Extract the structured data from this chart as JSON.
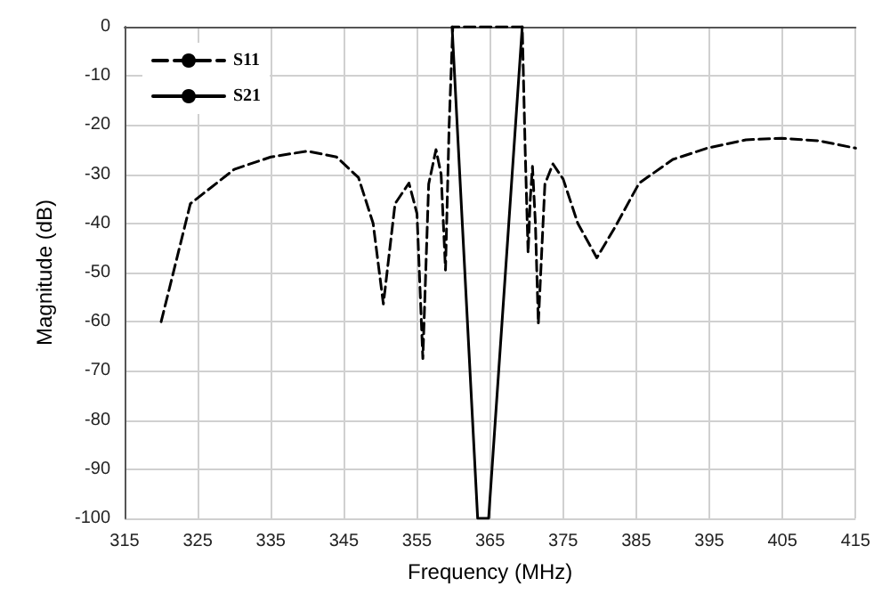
{
  "chart_data": {
    "type": "line",
    "xlabel": "Frequency (MHz)",
    "ylabel": "Magnitude (dB)",
    "xlim": [
      315,
      415
    ],
    "xticks": [
      315,
      325,
      335,
      345,
      355,
      365,
      375,
      385,
      395,
      405,
      415
    ],
    "ylim": [
      -100,
      0
    ],
    "yticks": [
      -100,
      -90,
      -80,
      -70,
      -60,
      -50,
      -40,
      -30,
      -20,
      -10,
      0
    ],
    "grid": true,
    "legend": "top left",
    "marker": "none",
    "series": [
      {
        "name": "S11",
        "color": "#000000",
        "line_style": "dashed",
        "x": [
          320,
          324,
          330,
          335,
          340,
          344,
          347,
          349,
          350.4,
          352,
          353.9,
          355,
          355.8,
          356.6,
          357.6,
          358.3,
          358.9,
          359.4,
          359.9,
          365,
          369.4,
          369.8,
          370.2,
          370.5,
          370.8,
          371.2,
          371.6,
          372.5,
          373.6,
          375,
          377,
          379.6,
          382,
          385.4,
          390,
          394.7,
          400,
          404.9,
          410,
          415
        ],
        "values": [
          -60,
          -36,
          -29,
          -26.5,
          -25.3,
          -26.5,
          -30.7,
          -40,
          -56.4,
          -36,
          -31.8,
          -38,
          -67.5,
          -32,
          -25,
          -30,
          -49.5,
          -20,
          0,
          0,
          0,
          -25,
          -46,
          -35,
          -28.4,
          -40,
          -60.4,
          -32,
          -27.9,
          -31,
          -40,
          -47,
          -41,
          -31.8,
          -27,
          -24.7,
          -23,
          -22.7,
          -23.2,
          -24.7
        ]
      },
      {
        "name": "S21",
        "color": "#000000",
        "line_style": "solid",
        "x": [
          359.8,
          363.3,
          364.8,
          369.4
        ],
        "values": [
          0,
          -100,
          -100,
          0
        ]
      }
    ]
  }
}
